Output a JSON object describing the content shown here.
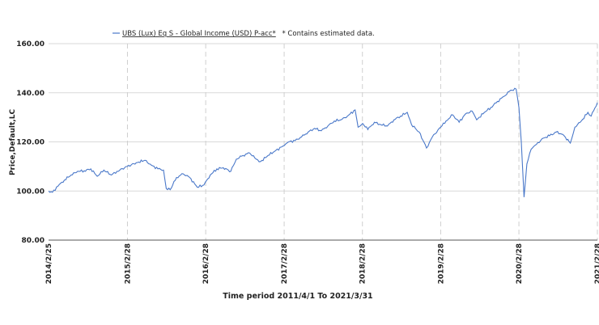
{
  "chart_data": {
    "type": "line",
    "title": "",
    "ylabel": "Price,Default,LC",
    "xlabel": "",
    "footer": "Time period 2011/4/1 To 2021/3/31",
    "legend": {
      "series_label": "UBS (Lux) Eq S - Global Income (USD) P-acc*",
      "note": "* Contains estimated data."
    },
    "ylim": [
      80,
      160
    ],
    "yticks": [
      "80.00",
      "100.00",
      "120.00",
      "140.00",
      "160.00"
    ],
    "xlim": [
      "2014/2/25",
      "2021/2/28"
    ],
    "xticks": [
      "2014/2/25",
      "2015/2/28",
      "2016/2/28",
      "2017/2/28",
      "2018/2/28",
      "2019/2/28",
      "2020/2/28",
      "2021/2/28"
    ],
    "grid": {
      "horizontal": true,
      "vertical_dashed": true
    },
    "series": [
      {
        "name": "UBS (Lux) Eq S - Global Income (USD) P-acc*",
        "color": "#4a78c9",
        "points": [
          [
            "2014-02-25",
            100.0
          ],
          [
            "2014-03-15",
            99.5
          ],
          [
            "2014-04-10",
            102.0
          ],
          [
            "2014-05-10",
            104.5
          ],
          [
            "2014-06-10",
            106.5
          ],
          [
            "2014-07-10",
            108.0
          ],
          [
            "2014-08-10",
            108.2
          ],
          [
            "2014-09-10",
            109.0
          ],
          [
            "2014-10-10",
            106.0
          ],
          [
            "2014-11-10",
            108.5
          ],
          [
            "2014-12-15",
            106.5
          ],
          [
            "2015-01-10",
            108.0
          ],
          [
            "2015-02-28",
            110.0
          ],
          [
            "2015-04-10",
            111.5
          ],
          [
            "2015-05-20",
            112.5
          ],
          [
            "2015-06-20",
            110.5
          ],
          [
            "2015-07-20",
            109.0
          ],
          [
            "2015-08-15",
            108.5
          ],
          [
            "2015-08-28",
            101.0
          ],
          [
            "2015-09-15",
            100.5
          ],
          [
            "2015-10-15",
            105.5
          ],
          [
            "2015-11-15",
            107.0
          ],
          [
            "2015-12-15",
            105.5
          ],
          [
            "2016-01-20",
            101.5
          ],
          [
            "2016-02-20",
            102.5
          ],
          [
            "2016-03-20",
            106.5
          ],
          [
            "2016-04-20",
            109.0
          ],
          [
            "2016-05-20",
            109.5
          ],
          [
            "2016-06-24",
            108.0
          ],
          [
            "2016-07-20",
            113.0
          ],
          [
            "2016-08-20",
            114.5
          ],
          [
            "2016-09-20",
            115.5
          ],
          [
            "2016-10-20",
            113.0
          ],
          [
            "2016-11-10",
            112.0
          ],
          [
            "2016-12-15",
            114.5
          ],
          [
            "2017-01-20",
            116.5
          ],
          [
            "2017-02-28",
            118.5
          ],
          [
            "2017-03-20",
            120.0
          ],
          [
            "2017-04-20",
            120.5
          ],
          [
            "2017-05-20",
            122.0
          ],
          [
            "2017-06-20",
            124.0
          ],
          [
            "2017-07-20",
            125.5
          ],
          [
            "2017-08-20",
            124.5
          ],
          [
            "2017-09-20",
            126.5
          ],
          [
            "2017-10-20",
            128.5
          ],
          [
            "2017-11-20",
            129.0
          ],
          [
            "2017-12-20",
            130.5
          ],
          [
            "2018-01-25",
            133.0
          ],
          [
            "2018-02-08",
            126.0
          ],
          [
            "2018-03-01",
            127.5
          ],
          [
            "2018-03-25",
            125.0
          ],
          [
            "2018-04-25",
            128.0
          ],
          [
            "2018-05-25",
            127.0
          ],
          [
            "2018-06-25",
            126.5
          ],
          [
            "2018-07-25",
            129.0
          ],
          [
            "2018-08-25",
            130.5
          ],
          [
            "2018-09-25",
            132.0
          ],
          [
            "2018-10-15",
            127.0
          ],
          [
            "2018-11-20",
            124.0
          ],
          [
            "2018-12-24",
            117.5
          ],
          [
            "2019-01-20",
            122.0
          ],
          [
            "2019-02-28",
            126.0
          ],
          [
            "2019-03-25",
            128.5
          ],
          [
            "2019-04-25",
            131.0
          ],
          [
            "2019-05-25",
            128.0
          ],
          [
            "2019-06-25",
            131.5
          ],
          [
            "2019-07-25",
            132.5
          ],
          [
            "2019-08-15",
            129.0
          ],
          [
            "2019-09-20",
            132.0
          ],
          [
            "2019-10-20",
            134.0
          ],
          [
            "2019-11-20",
            136.5
          ],
          [
            "2019-12-20",
            138.5
          ],
          [
            "2020-01-20",
            141.0
          ],
          [
            "2020-02-15",
            141.5
          ],
          [
            "2020-02-28",
            134.0
          ],
          [
            "2020-03-10",
            120.0
          ],
          [
            "2020-03-23",
            97.5
          ],
          [
            "2020-04-05",
            111.0
          ],
          [
            "2020-04-25",
            117.0
          ],
          [
            "2020-05-20",
            119.0
          ],
          [
            "2020-06-20",
            121.5
          ],
          [
            "2020-07-20",
            122.5
          ],
          [
            "2020-08-20",
            124.0
          ],
          [
            "2020-09-20",
            123.0
          ],
          [
            "2020-10-25",
            119.5
          ],
          [
            "2020-11-15",
            126.0
          ],
          [
            "2020-12-15",
            128.5
          ],
          [
            "2021-01-15",
            132.0
          ],
          [
            "2021-01-30",
            130.5
          ],
          [
            "2021-02-28",
            136.0
          ]
        ]
      }
    ]
  }
}
